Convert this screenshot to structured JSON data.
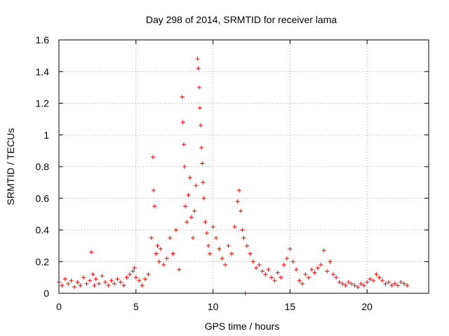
{
  "chart_data": {
    "type": "scatter",
    "title": "Day 298 of 2014, SRMTID for receiver lama",
    "xlabel": "GPS time / hours",
    "ylabel": "SRMTID / TECUs",
    "xlim": [
      0,
      24
    ],
    "ylim": [
      0,
      1.6
    ],
    "xticks": [
      0,
      5,
      10,
      15,
      20
    ],
    "xtick_labels": [
      "0",
      "5",
      "10",
      "15",
      "20"
    ],
    "yticks": [
      0,
      0.2,
      0.4,
      0.6,
      0.8,
      1,
      1.2,
      1.4,
      1.6
    ],
    "ytick_labels": [
      "0",
      "0.2",
      "0.4",
      "0.6",
      "0.8",
      "1",
      "1.2",
      "1.4",
      "1.6"
    ],
    "grid": true,
    "marker": "plus",
    "color": "#ff0000",
    "series": [
      {
        "name": "SRMTID",
        "x": [
          0.0,
          0.2,
          0.4,
          0.6,
          0.8,
          1.0,
          1.2,
          1.4,
          1.6,
          1.8,
          2.0,
          2.1,
          2.2,
          2.3,
          2.4,
          2.6,
          2.8,
          3.0,
          3.2,
          3.4,
          3.6,
          3.8,
          4.0,
          4.2,
          4.4,
          4.6,
          4.8,
          4.9,
          5.0,
          5.2,
          5.4,
          5.6,
          5.8,
          6.0,
          6.1,
          6.15,
          6.2,
          6.3,
          6.4,
          6.5,
          6.6,
          6.8,
          7.0,
          7.2,
          7.4,
          7.6,
          7.8,
          8.0,
          8.05,
          8.1,
          8.15,
          8.2,
          8.3,
          8.4,
          8.5,
          8.6,
          8.7,
          8.8,
          8.9,
          9.0,
          9.05,
          9.1,
          9.15,
          9.2,
          9.25,
          9.3,
          9.35,
          9.4,
          9.5,
          9.6,
          9.7,
          9.8,
          10.0,
          10.2,
          10.4,
          10.6,
          10.8,
          11.0,
          11.2,
          11.4,
          11.6,
          11.7,
          11.8,
          11.9,
          12.0,
          12.1,
          12.2,
          12.4,
          12.6,
          12.8,
          13.0,
          13.2,
          13.4,
          13.6,
          13.8,
          14.0,
          14.2,
          14.4,
          14.6,
          14.8,
          15.0,
          15.2,
          15.4,
          15.6,
          15.8,
          16.0,
          16.2,
          16.4,
          16.6,
          16.8,
          17.0,
          17.2,
          17.4,
          17.6,
          17.8,
          18.0,
          18.2,
          18.4,
          18.6,
          18.8,
          19.0,
          19.2,
          19.4,
          19.6,
          19.8,
          20.0,
          20.2,
          20.4,
          20.6,
          20.8,
          21.0,
          21.2,
          21.4,
          21.6,
          21.8,
          22.0,
          22.2,
          22.4,
          22.6
        ],
        "y": [
          0.07,
          0.05,
          0.09,
          0.06,
          0.08,
          0.04,
          0.07,
          0.05,
          0.1,
          0.06,
          0.08,
          0.26,
          0.12,
          0.05,
          0.09,
          0.06,
          0.11,
          0.07,
          0.05,
          0.08,
          0.06,
          0.09,
          0.07,
          0.05,
          0.1,
          0.12,
          0.14,
          0.16,
          0.1,
          0.08,
          0.05,
          0.09,
          0.12,
          0.35,
          0.86,
          0.65,
          0.55,
          0.25,
          0.3,
          0.2,
          0.28,
          0.18,
          0.22,
          0.35,
          0.25,
          0.4,
          0.15,
          1.24,
          1.08,
          0.94,
          0.8,
          0.55,
          0.45,
          0.62,
          0.73,
          0.48,
          0.35,
          0.52,
          0.68,
          1.48,
          1.42,
          1.3,
          1.17,
          1.06,
          0.92,
          0.82,
          0.7,
          0.6,
          0.45,
          0.38,
          0.3,
          0.25,
          0.42,
          0.35,
          0.28,
          0.22,
          0.18,
          0.3,
          0.25,
          0.42,
          0.58,
          0.65,
          0.52,
          0.4,
          0.35,
          0.0,
          0.3,
          0.25,
          0.2,
          0.16,
          0.18,
          0.14,
          0.12,
          0.15,
          0.1,
          0.08,
          0.13,
          0.1,
          0.18,
          0.22,
          0.28,
          0.2,
          0.15,
          0.08,
          0.06,
          0.12,
          0.1,
          0.15,
          0.13,
          0.16,
          0.18,
          0.27,
          0.14,
          0.2,
          0.12,
          0.1,
          0.07,
          0.06,
          0.05,
          0.07,
          0.06,
          0.05,
          0.04,
          0.06,
          0.05,
          0.07,
          0.09,
          0.08,
          0.12,
          0.1,
          0.08,
          0.06,
          0.07,
          0.05,
          0.06,
          0.05,
          0.07,
          0.06,
          0.05
        ]
      }
    ]
  }
}
